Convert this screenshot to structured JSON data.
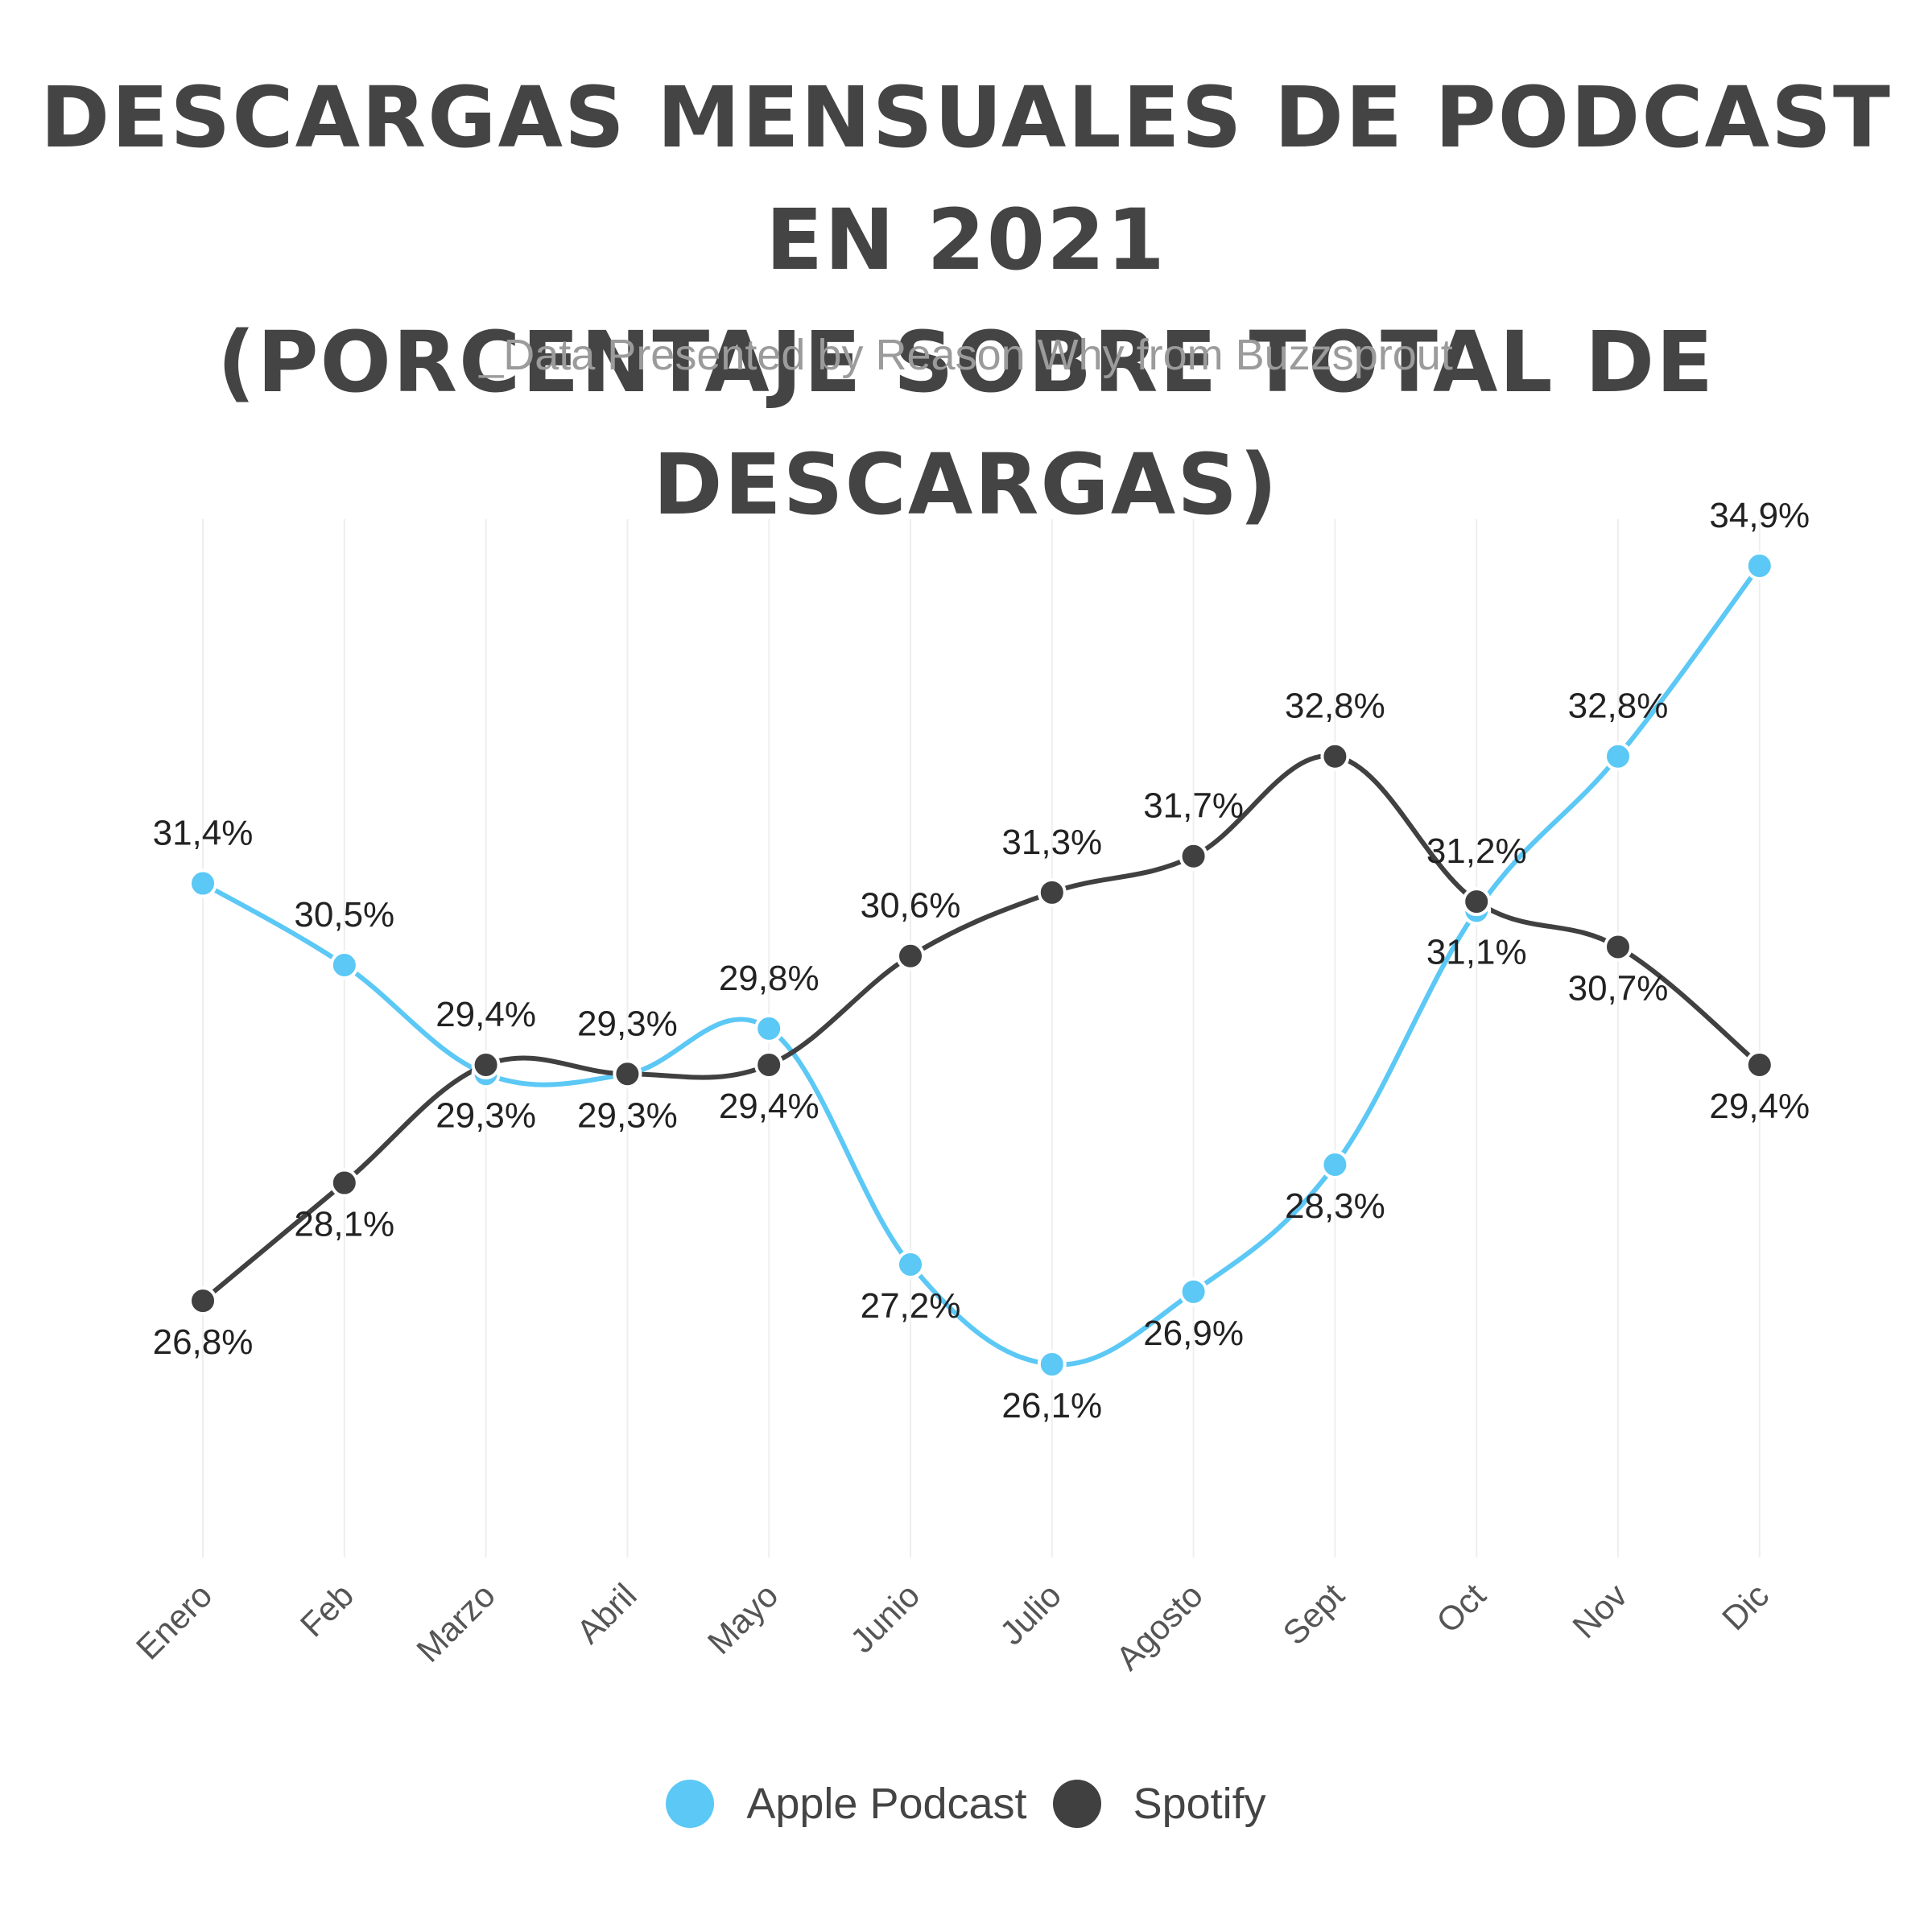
{
  "colors": {
    "apple": "#5bc8f5",
    "spotify": "#404040",
    "grid": "#eeeeee"
  },
  "chart_data": {
    "type": "line",
    "title": "DESCARGAS MENSUALES DE PODCAST EN 2021 (PORCENTAJE SOBRE TOTAL DE DESCARGAS)",
    "title_lines": [
      "DESCARGAS MENSUALES DE PODCAST EN 2021",
      "(PORCENTAJE SOBRE TOTAL DE DESCARGAS)"
    ],
    "subtitle": "_Data Presented by Reason Why from Buzzsprout",
    "categories": [
      "Enero",
      "Feb",
      "Marzo",
      "Abril",
      "Mayo",
      "Junio",
      "Julio",
      "Agosto",
      "Sept",
      "Oct",
      "Nov",
      "Dic"
    ],
    "series": [
      {
        "name": "Apple Podcast",
        "values": [
          31.4,
          30.5,
          29.3,
          29.3,
          29.8,
          27.2,
          26.1,
          26.9,
          28.3,
          31.1,
          32.8,
          34.9
        ],
        "labels": [
          "31,4%",
          "30,5%",
          "29,3%",
          "29,3%",
          "29,8%",
          "27,2%",
          "26,1%",
          "26,9%",
          "28,3%",
          "31,1%",
          "32,8%",
          "34,9%"
        ]
      },
      {
        "name": "Spotify",
        "values": [
          26.8,
          28.1,
          29.4,
          29.3,
          29.4,
          30.6,
          31.3,
          31.7,
          32.8,
          31.2,
          30.7,
          29.4
        ],
        "labels": [
          "26,8%",
          "28,1%",
          "29,4%",
          "29,3%",
          "29,4%",
          "30,6%",
          "31,3%",
          "31,7%",
          "32,8%",
          "31,2%",
          "30,7%",
          "29,4%"
        ]
      }
    ],
    "ylim": [
      25.0,
      36.0
    ],
    "grid": "vertical",
    "legend": "bottom"
  }
}
